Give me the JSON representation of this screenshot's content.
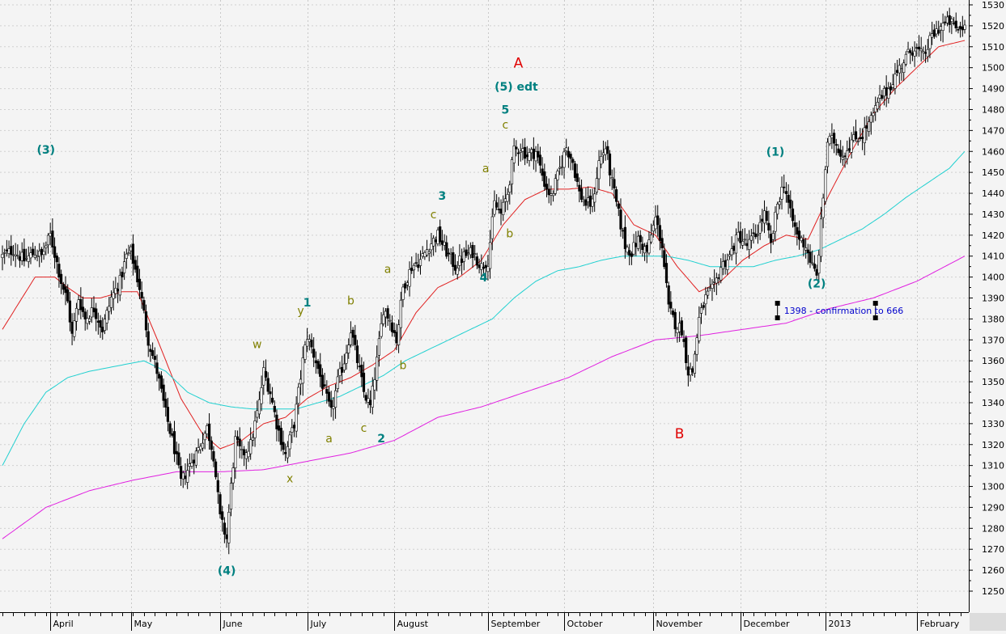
{
  "chart_data": {
    "type": "candlestick",
    "title": "",
    "xlabel": "",
    "ylabel": "",
    "ylim": [
      1240,
      1532
    ],
    "y_ticks": [
      1250,
      1260,
      1270,
      1280,
      1290,
      1300,
      1310,
      1320,
      1330,
      1340,
      1350,
      1360,
      1370,
      1380,
      1390,
      1400,
      1410,
      1420,
      1430,
      1440,
      1450,
      1460,
      1470,
      1480,
      1490,
      1500,
      1510,
      1520,
      1530
    ],
    "x_axis": [
      {
        "label": "April",
        "bar": 22
      },
      {
        "label": "May",
        "bar": 59
      },
      {
        "label": "June",
        "bar": 100
      },
      {
        "label": "July",
        "bar": 140
      },
      {
        "label": "August",
        "bar": 180
      },
      {
        "label": "September",
        "bar": 223
      },
      {
        "label": "October",
        "bar": 258
      },
      {
        "label": "November",
        "bar": 299
      },
      {
        "label": "December",
        "bar": 339
      },
      {
        "label": "2013",
        "bar": 378
      },
      {
        "label": "February",
        "bar": 420
      }
    ],
    "price_anchors": [
      [
        0,
        1410
      ],
      [
        5,
        1413
      ],
      [
        10,
        1408
      ],
      [
        15,
        1412
      ],
      [
        18,
        1410
      ],
      [
        22,
        1420
      ],
      [
        27,
        1398
      ],
      [
        30,
        1388
      ],
      [
        32,
        1372
      ],
      [
        35,
        1390
      ],
      [
        38,
        1380
      ],
      [
        42,
        1385
      ],
      [
        46,
        1375
      ],
      [
        50,
        1390
      ],
      [
        54,
        1398
      ],
      [
        57,
        1410
      ],
      [
        59,
        1412
      ],
      [
        63,
        1395
      ],
      [
        67,
        1370
      ],
      [
        71,
        1355
      ],
      [
        75,
        1335
      ],
      [
        79,
        1318
      ],
      [
        82,
        1302
      ],
      [
        86,
        1310
      ],
      [
        90,
        1318
      ],
      [
        94,
        1328
      ],
      [
        97,
        1315
      ],
      [
        100,
        1285
      ],
      [
        103,
        1275
      ],
      [
        105,
        1300
      ],
      [
        107,
        1322
      ],
      [
        110,
        1315
      ],
      [
        114,
        1320
      ],
      [
        118,
        1340
      ],
      [
        120,
        1355
      ],
      [
        123,
        1345
      ],
      [
        126,
        1330
      ],
      [
        130,
        1315
      ],
      [
        134,
        1330
      ],
      [
        138,
        1360
      ],
      [
        140,
        1372
      ],
      [
        144,
        1360
      ],
      [
        148,
        1345
      ],
      [
        151,
        1335
      ],
      [
        154,
        1350
      ],
      [
        157,
        1360
      ],
      [
        160,
        1375
      ],
      [
        163,
        1360
      ],
      [
        166,
        1345
      ],
      [
        169,
        1338
      ],
      [
        172,
        1360
      ],
      [
        175,
        1385
      ],
      [
        178,
        1380
      ],
      [
        181,
        1370
      ],
      [
        184,
        1395
      ],
      [
        188,
        1405
      ],
      [
        192,
        1408
      ],
      [
        196,
        1415
      ],
      [
        200,
        1420
      ],
      [
        204,
        1412
      ],
      [
        208,
        1405
      ],
      [
        212,
        1410
      ],
      [
        216,
        1412
      ],
      [
        220,
        1405
      ],
      [
        223,
        1408
      ],
      [
        226,
        1435
      ],
      [
        229,
        1430
      ],
      [
        232,
        1440
      ],
      [
        235,
        1460
      ],
      [
        238,
        1462
      ],
      [
        241,
        1458
      ],
      [
        245,
        1460
      ],
      [
        249,
        1445
      ],
      [
        252,
        1438
      ],
      [
        255,
        1448
      ],
      [
        259,
        1462
      ],
      [
        262,
        1455
      ],
      [
        265,
        1440
      ],
      [
        268,
        1435
      ],
      [
        271,
        1435
      ],
      [
        274,
        1455
      ],
      [
        277,
        1462
      ],
      [
        280,
        1445
      ],
      [
        283,
        1430
      ],
      [
        286,
        1415
      ],
      [
        289,
        1412
      ],
      [
        292,
        1418
      ],
      [
        296,
        1412
      ],
      [
        300,
        1428
      ],
      [
        303,
        1415
      ],
      [
        306,
        1385
      ],
      [
        309,
        1378
      ],
      [
        312,
        1375
      ],
      [
        315,
        1355
      ],
      [
        317,
        1355
      ],
      [
        320,
        1380
      ],
      [
        323,
        1390
      ],
      [
        327,
        1395
      ],
      [
        330,
        1405
      ],
      [
        334,
        1410
      ],
      [
        338,
        1420
      ],
      [
        342,
        1415
      ],
      [
        346,
        1420
      ],
      [
        350,
        1430
      ],
      [
        353,
        1415
      ],
      [
        356,
        1435
      ],
      [
        359,
        1445
      ],
      [
        362,
        1430
      ],
      [
        365,
        1420
      ],
      [
        369,
        1415
      ],
      [
        372,
        1405
      ],
      [
        374,
        1400
      ],
      [
        376,
        1425
      ],
      [
        379,
        1465
      ],
      [
        382,
        1465
      ],
      [
        386,
        1458
      ],
      [
        390,
        1465
      ],
      [
        395,
        1468
      ],
      [
        399,
        1475
      ],
      [
        403,
        1485
      ],
      [
        407,
        1490
      ],
      [
        411,
        1498
      ],
      [
        415,
        1505
      ],
      [
        419,
        1510
      ],
      [
        423,
        1505
      ],
      [
        427,
        1515
      ],
      [
        431,
        1520
      ],
      [
        435,
        1522
      ],
      [
        439,
        1518
      ],
      [
        442,
        1520
      ]
    ],
    "series": [
      {
        "color": "#e02020",
        "anchors": [
          [
            0,
            1375
          ],
          [
            15,
            1400
          ],
          [
            24,
            1400
          ],
          [
            30,
            1395
          ],
          [
            37,
            1390
          ],
          [
            45,
            1390
          ],
          [
            55,
            1393
          ],
          [
            62,
            1393
          ],
          [
            72,
            1368
          ],
          [
            82,
            1342
          ],
          [
            92,
            1325
          ],
          [
            100,
            1318
          ],
          [
            110,
            1322
          ],
          [
            120,
            1330
          ],
          [
            130,
            1333
          ],
          [
            140,
            1342
          ],
          [
            150,
            1348
          ],
          [
            160,
            1352
          ],
          [
            170,
            1358
          ],
          [
            180,
            1365
          ],
          [
            190,
            1383
          ],
          [
            200,
            1395
          ],
          [
            210,
            1400
          ],
          [
            220,
            1408
          ],
          [
            230,
            1425
          ],
          [
            240,
            1437
          ],
          [
            250,
            1442
          ],
          [
            260,
            1442
          ],
          [
            270,
            1443
          ],
          [
            280,
            1440
          ],
          [
            290,
            1425
          ],
          [
            300,
            1420
          ],
          [
            310,
            1405
          ],
          [
            320,
            1393
          ],
          [
            330,
            1398
          ],
          [
            340,
            1408
          ],
          [
            350,
            1415
          ],
          [
            360,
            1420
          ],
          [
            370,
            1418
          ],
          [
            380,
            1440
          ],
          [
            390,
            1460
          ],
          [
            400,
            1478
          ],
          [
            410,
            1490
          ],
          [
            420,
            1500
          ],
          [
            430,
            1510
          ],
          [
            442,
            1513
          ]
        ]
      },
      {
        "color": "#20d0d0",
        "anchors": [
          [
            0,
            1310
          ],
          [
            10,
            1330
          ],
          [
            20,
            1345
          ],
          [
            30,
            1352
          ],
          [
            40,
            1355
          ],
          [
            55,
            1358
          ],
          [
            65,
            1360
          ],
          [
            75,
            1355
          ],
          [
            85,
            1345
          ],
          [
            95,
            1340
          ],
          [
            105,
            1338
          ],
          [
            115,
            1337
          ],
          [
            125,
            1337
          ],
          [
            135,
            1337
          ],
          [
            145,
            1340
          ],
          [
            155,
            1343
          ],
          [
            165,
            1348
          ],
          [
            175,
            1353
          ],
          [
            185,
            1360
          ],
          [
            195,
            1365
          ],
          [
            205,
            1370
          ],
          [
            215,
            1375
          ],
          [
            225,
            1380
          ],
          [
            235,
            1390
          ],
          [
            245,
            1398
          ],
          [
            255,
            1403
          ],
          [
            265,
            1405
          ],
          [
            275,
            1408
          ],
          [
            285,
            1410
          ],
          [
            295,
            1410
          ],
          [
            305,
            1410
          ],
          [
            315,
            1408
          ],
          [
            325,
            1405
          ],
          [
            335,
            1405
          ],
          [
            345,
            1405
          ],
          [
            355,
            1408
          ],
          [
            365,
            1410
          ],
          [
            375,
            1413
          ],
          [
            385,
            1418
          ],
          [
            395,
            1423
          ],
          [
            405,
            1430
          ],
          [
            415,
            1438
          ],
          [
            425,
            1445
          ],
          [
            435,
            1452
          ],
          [
            442,
            1460
          ]
        ]
      },
      {
        "color": "#e020e0",
        "anchors": [
          [
            0,
            1275
          ],
          [
            20,
            1290
          ],
          [
            40,
            1298
          ],
          [
            60,
            1303
          ],
          [
            80,
            1307
          ],
          [
            100,
            1307
          ],
          [
            120,
            1308
          ],
          [
            140,
            1312
          ],
          [
            160,
            1316
          ],
          [
            180,
            1322
          ],
          [
            200,
            1333
          ],
          [
            220,
            1338
          ],
          [
            240,
            1345
          ],
          [
            260,
            1352
          ],
          [
            280,
            1362
          ],
          [
            300,
            1370
          ],
          [
            320,
            1372
          ],
          [
            340,
            1375
          ],
          [
            360,
            1378
          ],
          [
            380,
            1385
          ],
          [
            400,
            1390
          ],
          [
            420,
            1398
          ],
          [
            442,
            1410
          ]
        ]
      }
    ],
    "annotations": [
      {
        "text": "(3)",
        "bar": 20,
        "price": 1459,
        "color": "#008080"
      },
      {
        "text": "(4)",
        "bar": 103,
        "price": 1258,
        "color": "#008080"
      },
      {
        "text": "A",
        "bar": 237,
        "price": 1500,
        "color": "#e00000"
      },
      {
        "text": "(5) edt",
        "bar": 236,
        "price": 1489,
        "color": "#008080"
      },
      {
        "text": "5",
        "bar": 231,
        "price": 1478,
        "color": "#008080"
      },
      {
        "text": "c",
        "bar": 231,
        "price": 1471,
        "color": "#808000"
      },
      {
        "text": "3",
        "bar": 202,
        "price": 1437,
        "color": "#008080"
      },
      {
        "text": "c",
        "bar": 198,
        "price": 1428,
        "color": "#808000"
      },
      {
        "text": "a",
        "bar": 222,
        "price": 1450,
        "color": "#808000"
      },
      {
        "text": "b",
        "bar": 233,
        "price": 1419,
        "color": "#808000"
      },
      {
        "text": "a",
        "bar": 177,
        "price": 1402,
        "color": "#808000"
      },
      {
        "text": "4",
        "bar": 221,
        "price": 1398,
        "color": "#008080"
      },
      {
        "text": "1",
        "bar": 140,
        "price": 1386,
        "color": "#008080"
      },
      {
        "text": "y",
        "bar": 137,
        "price": 1382,
        "color": "#808000"
      },
      {
        "text": "b",
        "bar": 160,
        "price": 1387,
        "color": "#808000"
      },
      {
        "text": "w",
        "bar": 117,
        "price": 1366,
        "color": "#808000"
      },
      {
        "text": "b",
        "bar": 184,
        "price": 1356,
        "color": "#808000"
      },
      {
        "text": "a",
        "bar": 150,
        "price": 1321,
        "color": "#808000"
      },
      {
        "text": "c",
        "bar": 166,
        "price": 1326,
        "color": "#808000"
      },
      {
        "text": "2",
        "bar": 174,
        "price": 1321,
        "color": "#008080"
      },
      {
        "text": "x",
        "bar": 132,
        "price": 1302,
        "color": "#808000"
      },
      {
        "text": "B",
        "bar": 311,
        "price": 1323,
        "color": "#e00000"
      },
      {
        "text": "(1)",
        "bar": 355,
        "price": 1458,
        "color": "#008080"
      },
      {
        "text": "(2)",
        "bar": 374,
        "price": 1395,
        "color": "#008080"
      }
    ],
    "note": {
      "text": "1398 - confirmation to 666",
      "bar_start": 356,
      "bar_end": 401,
      "price": 1384,
      "color": "#0000cc"
    }
  }
}
